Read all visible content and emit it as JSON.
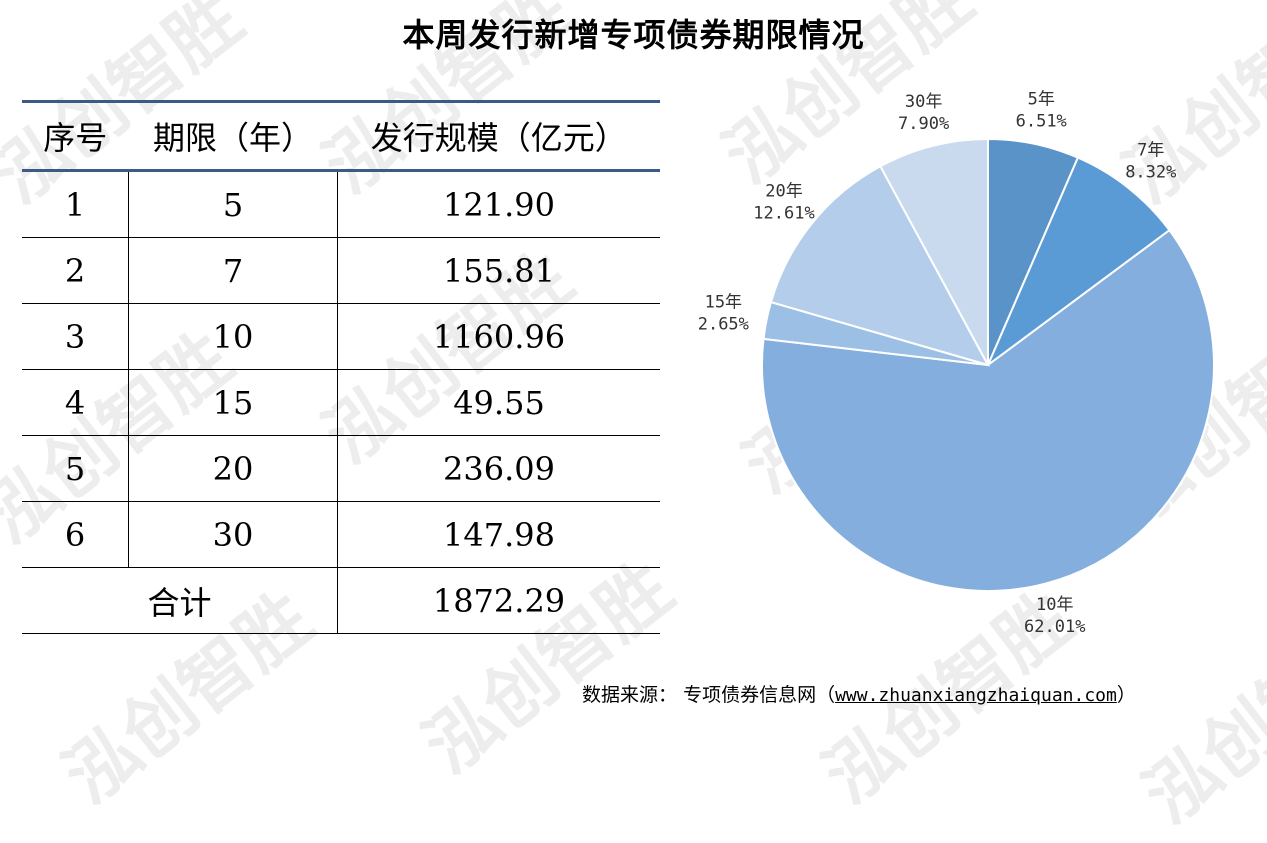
{
  "title": "本周发行新增专项债券期限情况",
  "watermark": "泓创智胜",
  "table": {
    "headers": [
      "序号",
      "期限（年）",
      "发行规模（亿元）"
    ],
    "rows": [
      [
        "1",
        "5",
        "121.90"
      ],
      [
        "2",
        "7",
        "155.81"
      ],
      [
        "3",
        "10",
        "1160.96"
      ],
      [
        "4",
        "15",
        "49.55"
      ],
      [
        "5",
        "20",
        "236.09"
      ],
      [
        "6",
        "30",
        "147.98"
      ]
    ],
    "total_label": "合计",
    "total_value": "1872.29"
  },
  "chart_data": {
    "type": "pie",
    "title": "",
    "slices": [
      {
        "label": "5年",
        "percent_text": "6.51%",
        "value": 6.51,
        "color": "#5a93c8"
      },
      {
        "label": "7年",
        "percent_text": "8.32%",
        "value": 8.32,
        "color": "#5b9bd5"
      },
      {
        "label": "10年",
        "percent_text": "62.01%",
        "value": 62.01,
        "color": "#84aede"
      },
      {
        "label": "15年",
        "percent_text": "2.65%",
        "value": 2.65,
        "color": "#9cbfe6"
      },
      {
        "label": "20年",
        "percent_text": "12.61%",
        "value": 12.61,
        "color": "#b3cdea"
      },
      {
        "label": "30年",
        "percent_text": "7.90%",
        "value": 7.9,
        "color": "#c9daee"
      }
    ]
  },
  "source": {
    "label": "数据来源：",
    "name": "专项债券信息网（",
    "url": "www.zhuanxiangzhaiquan.com",
    "close": "）"
  }
}
